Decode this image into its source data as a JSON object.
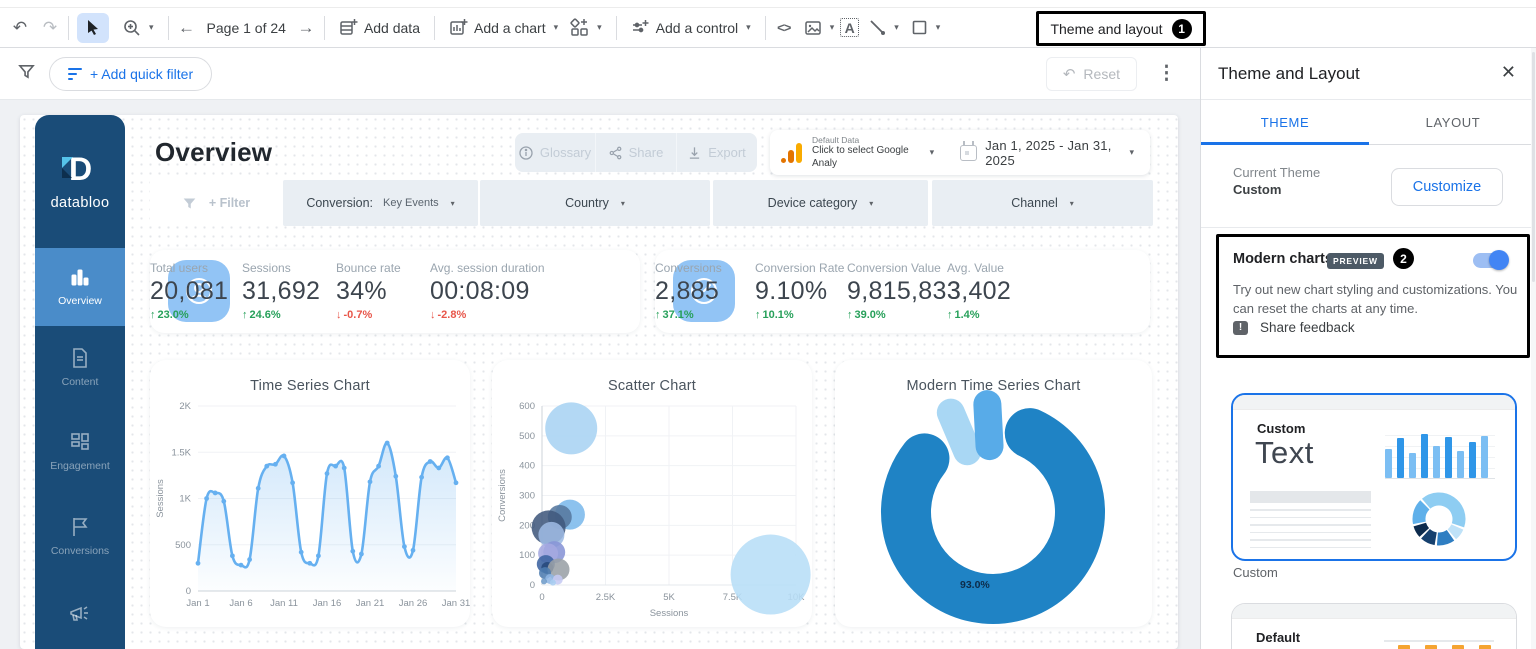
{
  "toolbar": {
    "page_nav": "Page 1 of 24",
    "add_data": "Add data",
    "add_chart": "Add a chart",
    "add_control": "Add a control",
    "theme_layout": "Theme and layout",
    "annotation_1": "1"
  },
  "filter_bar": {
    "add_quick_filter": "+ Add quick filter",
    "reset": "Reset"
  },
  "sidebar": {
    "brand": "databloo",
    "items": [
      {
        "label": "Overview",
        "icon": "bar-chart",
        "active": true
      },
      {
        "label": "Content",
        "icon": "document",
        "active": false
      },
      {
        "label": "Engagement",
        "icon": "grid",
        "active": false
      },
      {
        "label": "Conversions",
        "icon": "flag",
        "active": false
      },
      {
        "label": "",
        "icon": "megaphone",
        "active": false
      }
    ]
  },
  "header": {
    "title": "Overview",
    "actions": [
      "Glossary",
      "Share",
      "Export"
    ],
    "data_source": {
      "label": "Default Data",
      "sublabel": "Click to select Google Analy"
    },
    "date_range": "Jan 1, 2025 - Jan 31, 2025"
  },
  "filters": {
    "add_filter": "+ Filter",
    "chips": [
      {
        "label": "Conversion:",
        "value": "Key Events"
      },
      {
        "label": "Country",
        "value": ""
      },
      {
        "label": "Device category",
        "value": ""
      },
      {
        "label": "Channel",
        "value": ""
      }
    ]
  },
  "kpi_cards": [
    {
      "icon": "user",
      "metrics": [
        {
          "label": "Total users",
          "value": "20,081",
          "delta": "23.0%",
          "dir": "up"
        },
        {
          "label": "Sessions",
          "value": "31,692",
          "delta": "24.6%",
          "dir": "up"
        },
        {
          "label": "Bounce rate",
          "value": "34%",
          "delta": "-0.7%",
          "dir": "down"
        },
        {
          "label": "Avg. session duration",
          "value": "00:08:09",
          "delta": "-2.8%",
          "dir": "down"
        }
      ]
    },
    {
      "icon": "gauge",
      "metrics": [
        {
          "label": "Conversions",
          "value": "2,885",
          "delta": "37.1%",
          "dir": "up"
        },
        {
          "label": "Conversion Rate",
          "value": "9.10%",
          "delta": "10.1%",
          "dir": "up"
        },
        {
          "label": "Conversion Value",
          "value": "9,815,833",
          "delta": "39.0%",
          "dir": "up"
        },
        {
          "label": "Avg. Value",
          "value": "3,402",
          "delta": "1.4%",
          "dir": "up"
        }
      ]
    }
  ],
  "chart_data": [
    {
      "type": "line",
      "title": "Time Series Chart",
      "xlabel": "",
      "ylabel": "Sessions",
      "ylim": [
        0,
        2000
      ],
      "area": true,
      "color": "#66b0f0",
      "values": [
        300,
        1000,
        1060,
        970,
        380,
        280,
        340,
        1110,
        1350,
        1370,
        1460,
        1170,
        420,
        300,
        380,
        1270,
        1350,
        1330,
        430,
        400,
        1180,
        1350,
        1600,
        1240,
        480,
        440,
        1230,
        1400,
        1330,
        1440,
        1170
      ],
      "x_ticks": [
        [
          0,
          "Jan 1"
        ],
        [
          5,
          "Jan 6"
        ],
        [
          10,
          "Jan 11"
        ],
        [
          15,
          "Jan 16"
        ],
        [
          20,
          "Jan 21"
        ],
        [
          25,
          "Jan 26"
        ],
        [
          30,
          "Jan 31"
        ]
      ],
      "y_ticks": [
        [
          0,
          "0"
        ],
        [
          500,
          "500"
        ],
        [
          1000,
          "1K"
        ],
        [
          1500,
          "1.5K"
        ],
        [
          2000,
          "2K"
        ]
      ]
    },
    {
      "type": "scatter",
      "title": "Scatter Chart",
      "xlabel": "Sessions",
      "ylabel": "Conversions",
      "xlim": [
        0,
        10000
      ],
      "ylim": [
        0,
        600
      ],
      "x_ticks": [
        [
          0,
          "0"
        ],
        [
          2500,
          "2.5K"
        ],
        [
          5000,
          "5K"
        ],
        [
          7500,
          "7.5K"
        ],
        [
          10000,
          "10K"
        ]
      ],
      "y_ticks": [
        [
          0,
          "0"
        ],
        [
          100,
          "100"
        ],
        [
          200,
          "200"
        ],
        [
          300,
          "300"
        ],
        [
          400,
          "400"
        ],
        [
          500,
          "500"
        ],
        [
          600,
          "600"
        ]
      ],
      "points": [
        {
          "x": 1150,
          "y": 525,
          "r": 26,
          "color": "#a9d3f3"
        },
        {
          "x": 9000,
          "y": 35,
          "r": 40,
          "color": "#b7def7"
        },
        {
          "x": 1100,
          "y": 236,
          "r": 15,
          "color": "#7cb9ec"
        },
        {
          "x": 700,
          "y": 228,
          "r": 12,
          "color": "#56779e"
        },
        {
          "x": 260,
          "y": 193,
          "r": 17,
          "color": "#41597d"
        },
        {
          "x": 370,
          "y": 168,
          "r": 13,
          "color": "#9db9e2"
        },
        {
          "x": 480,
          "y": 110,
          "r": 11,
          "color": "#8894d6"
        },
        {
          "x": 240,
          "y": 106,
          "r": 10,
          "color": "#a5a9e0"
        },
        {
          "x": 150,
          "y": 70,
          "r": 9,
          "color": "#3c63a0"
        },
        {
          "x": 210,
          "y": 57,
          "r": 6,
          "color": "#27497b"
        },
        {
          "x": 650,
          "y": 52,
          "r": 11,
          "color": "#9aa0a6"
        },
        {
          "x": 120,
          "y": 40,
          "r": 6,
          "color": "#4f7db0"
        },
        {
          "x": 320,
          "y": 20,
          "r": 5,
          "color": "#8fb6e4"
        },
        {
          "x": 620,
          "y": 18,
          "r": 5,
          "color": "#c5c9f2"
        },
        {
          "x": 80,
          "y": 12,
          "r": 3,
          "color": "#6f9cc9"
        },
        {
          "x": 430,
          "y": 8,
          "r": 3,
          "color": "#a9cdf0"
        }
      ]
    },
    {
      "type": "pie",
      "title": "Modern Time Series Chart",
      "donut": true,
      "slices": [
        {
          "label": "93.0%",
          "value": 93.0,
          "color": "#1f83c5"
        },
        {
          "label": "",
          "value": 3.5,
          "color": "#a9d7f4"
        },
        {
          "label": "",
          "value": 3.5,
          "color": "#58abe8"
        }
      ]
    }
  ],
  "panel": {
    "title": "Theme and Layout",
    "close": "✕",
    "tabs": [
      {
        "label": "THEME",
        "active": true
      },
      {
        "label": "LAYOUT",
        "active": false
      }
    ],
    "current_theme_label": "Current Theme",
    "current_theme_value": "Custom",
    "customize": "Customize",
    "modern_charts": {
      "title": "Modern charts",
      "badge": "PREVIEW",
      "annotation": "2",
      "toggle_on": true,
      "description": "Try out new chart styling and customizations. You can reset the charts at any time.",
      "feedback": "Share feedback",
      "feedback_icon": "!"
    },
    "themes": [
      {
        "name": "Custom",
        "selected": true,
        "preview": {
          "heading": "Custom",
          "body_text": "Text",
          "bar_values": [
            62,
            88,
            55,
            95,
            70,
            90,
            58,
            78,
            92
          ],
          "bar_colors": [
            "#7bbef3",
            "#2f96e8"
          ],
          "donut_slices": [
            {
              "value": 45,
              "color": "#8ecdf2"
            },
            {
              "value": 8,
              "color": "#bfe2f8"
            },
            {
              "value": 12,
              "color": "#2f7ec2"
            },
            {
              "value": 10,
              "color": "#16406e"
            },
            {
              "value": 8,
              "color": "#0d2b4d"
            },
            {
              "value": 17,
              "color": "#5fb0ea"
            }
          ]
        }
      },
      {
        "name": "Default",
        "selected": false,
        "preview": {
          "heading": "Default",
          "bar_color": "#f5a431",
          "bar_count": 4
        }
      }
    ]
  }
}
